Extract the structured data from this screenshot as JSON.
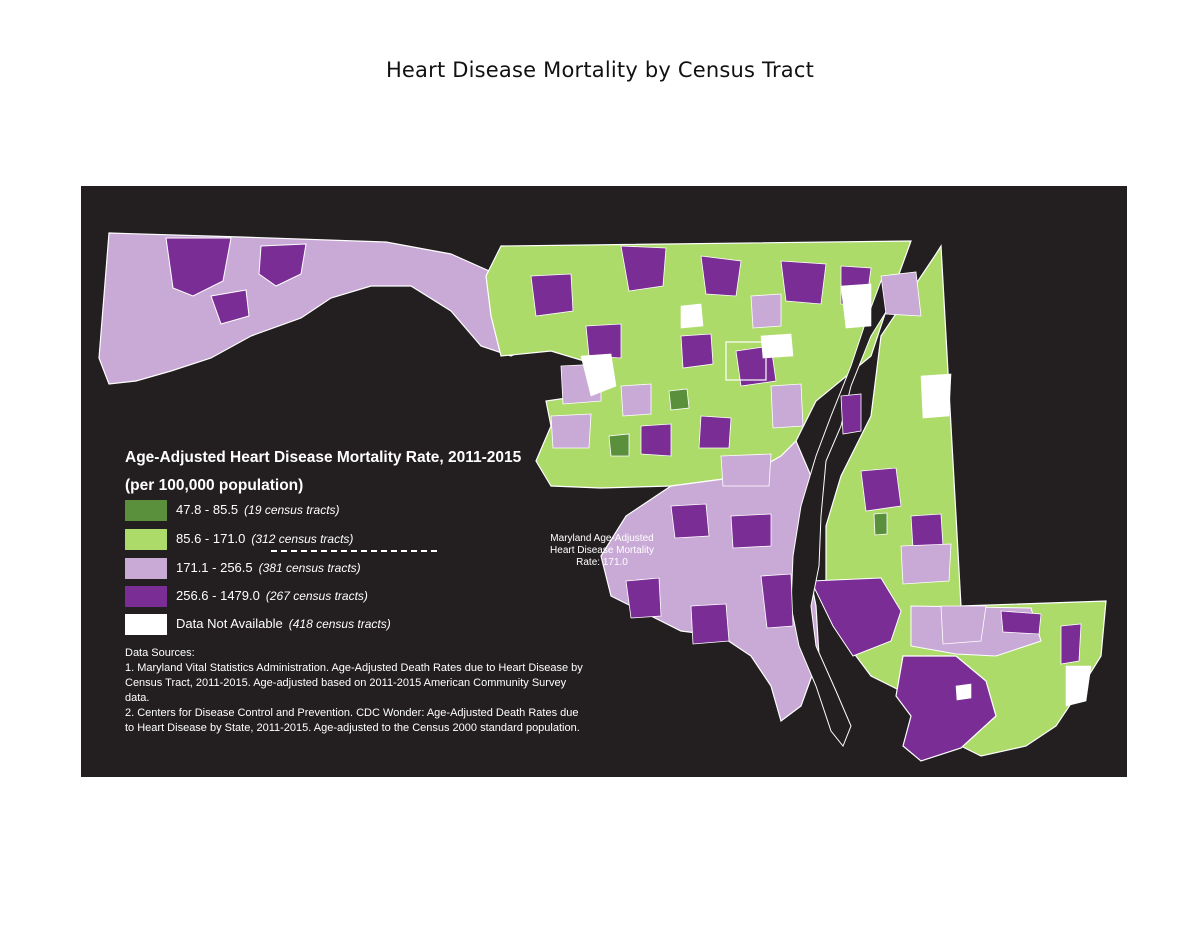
{
  "page": {
    "title": "Heart Disease Mortality by Census Tract"
  },
  "legend": {
    "title_line1": "Age-Adjusted Heart Disease Mortality Rate, 2011-2015",
    "title_line2": "(per 100,000 population)",
    "classes": [
      {
        "range": "47.8 - 85.5",
        "count": "(19 census tracts)",
        "color": "#5a8f3c"
      },
      {
        "range": "85.6 - 171.0",
        "count": "(312 census tracts)",
        "color": "#addb6a"
      },
      {
        "range": "171.1 - 256.5",
        "count": "(381 census tracts)",
        "color": "#c9a9d6"
      },
      {
        "range": "256.6 - 1479.0",
        "count": "(267 census tracts)",
        "color": "#7b2d96"
      },
      {
        "range": "Data Not Available",
        "count": "(418 census tracts)",
        "color": "#ffffff"
      }
    ],
    "state_rate_label": [
      "Maryland Age-Adjusted",
      "Heart Disease Mortality",
      "Rate: 171.0"
    ]
  },
  "sources": {
    "heading": "Data Sources:",
    "item1": "1. Maryland Vital Statistics Administration.  Age-Adjusted Death Rates due to Heart Disease by Census Tract, 2011-2015.  Age-adjusted based on 2011-2015 American Community Survey data.",
    "item2": "2. Centers for Disease Control and Prevention.  CDC Wonder: Age-Adjusted Death Rates due to Heart Disease by State, 2011-2015.  Age-adjusted to the Census 2000 standard population."
  },
  "colors": {
    "panel_bg": "#231f20",
    "boundary": "#ffffff",
    "dark_green": "#5a8f3c",
    "light_green": "#addb6a",
    "light_purple": "#c9a9d6",
    "dark_purple": "#7b2d96"
  }
}
